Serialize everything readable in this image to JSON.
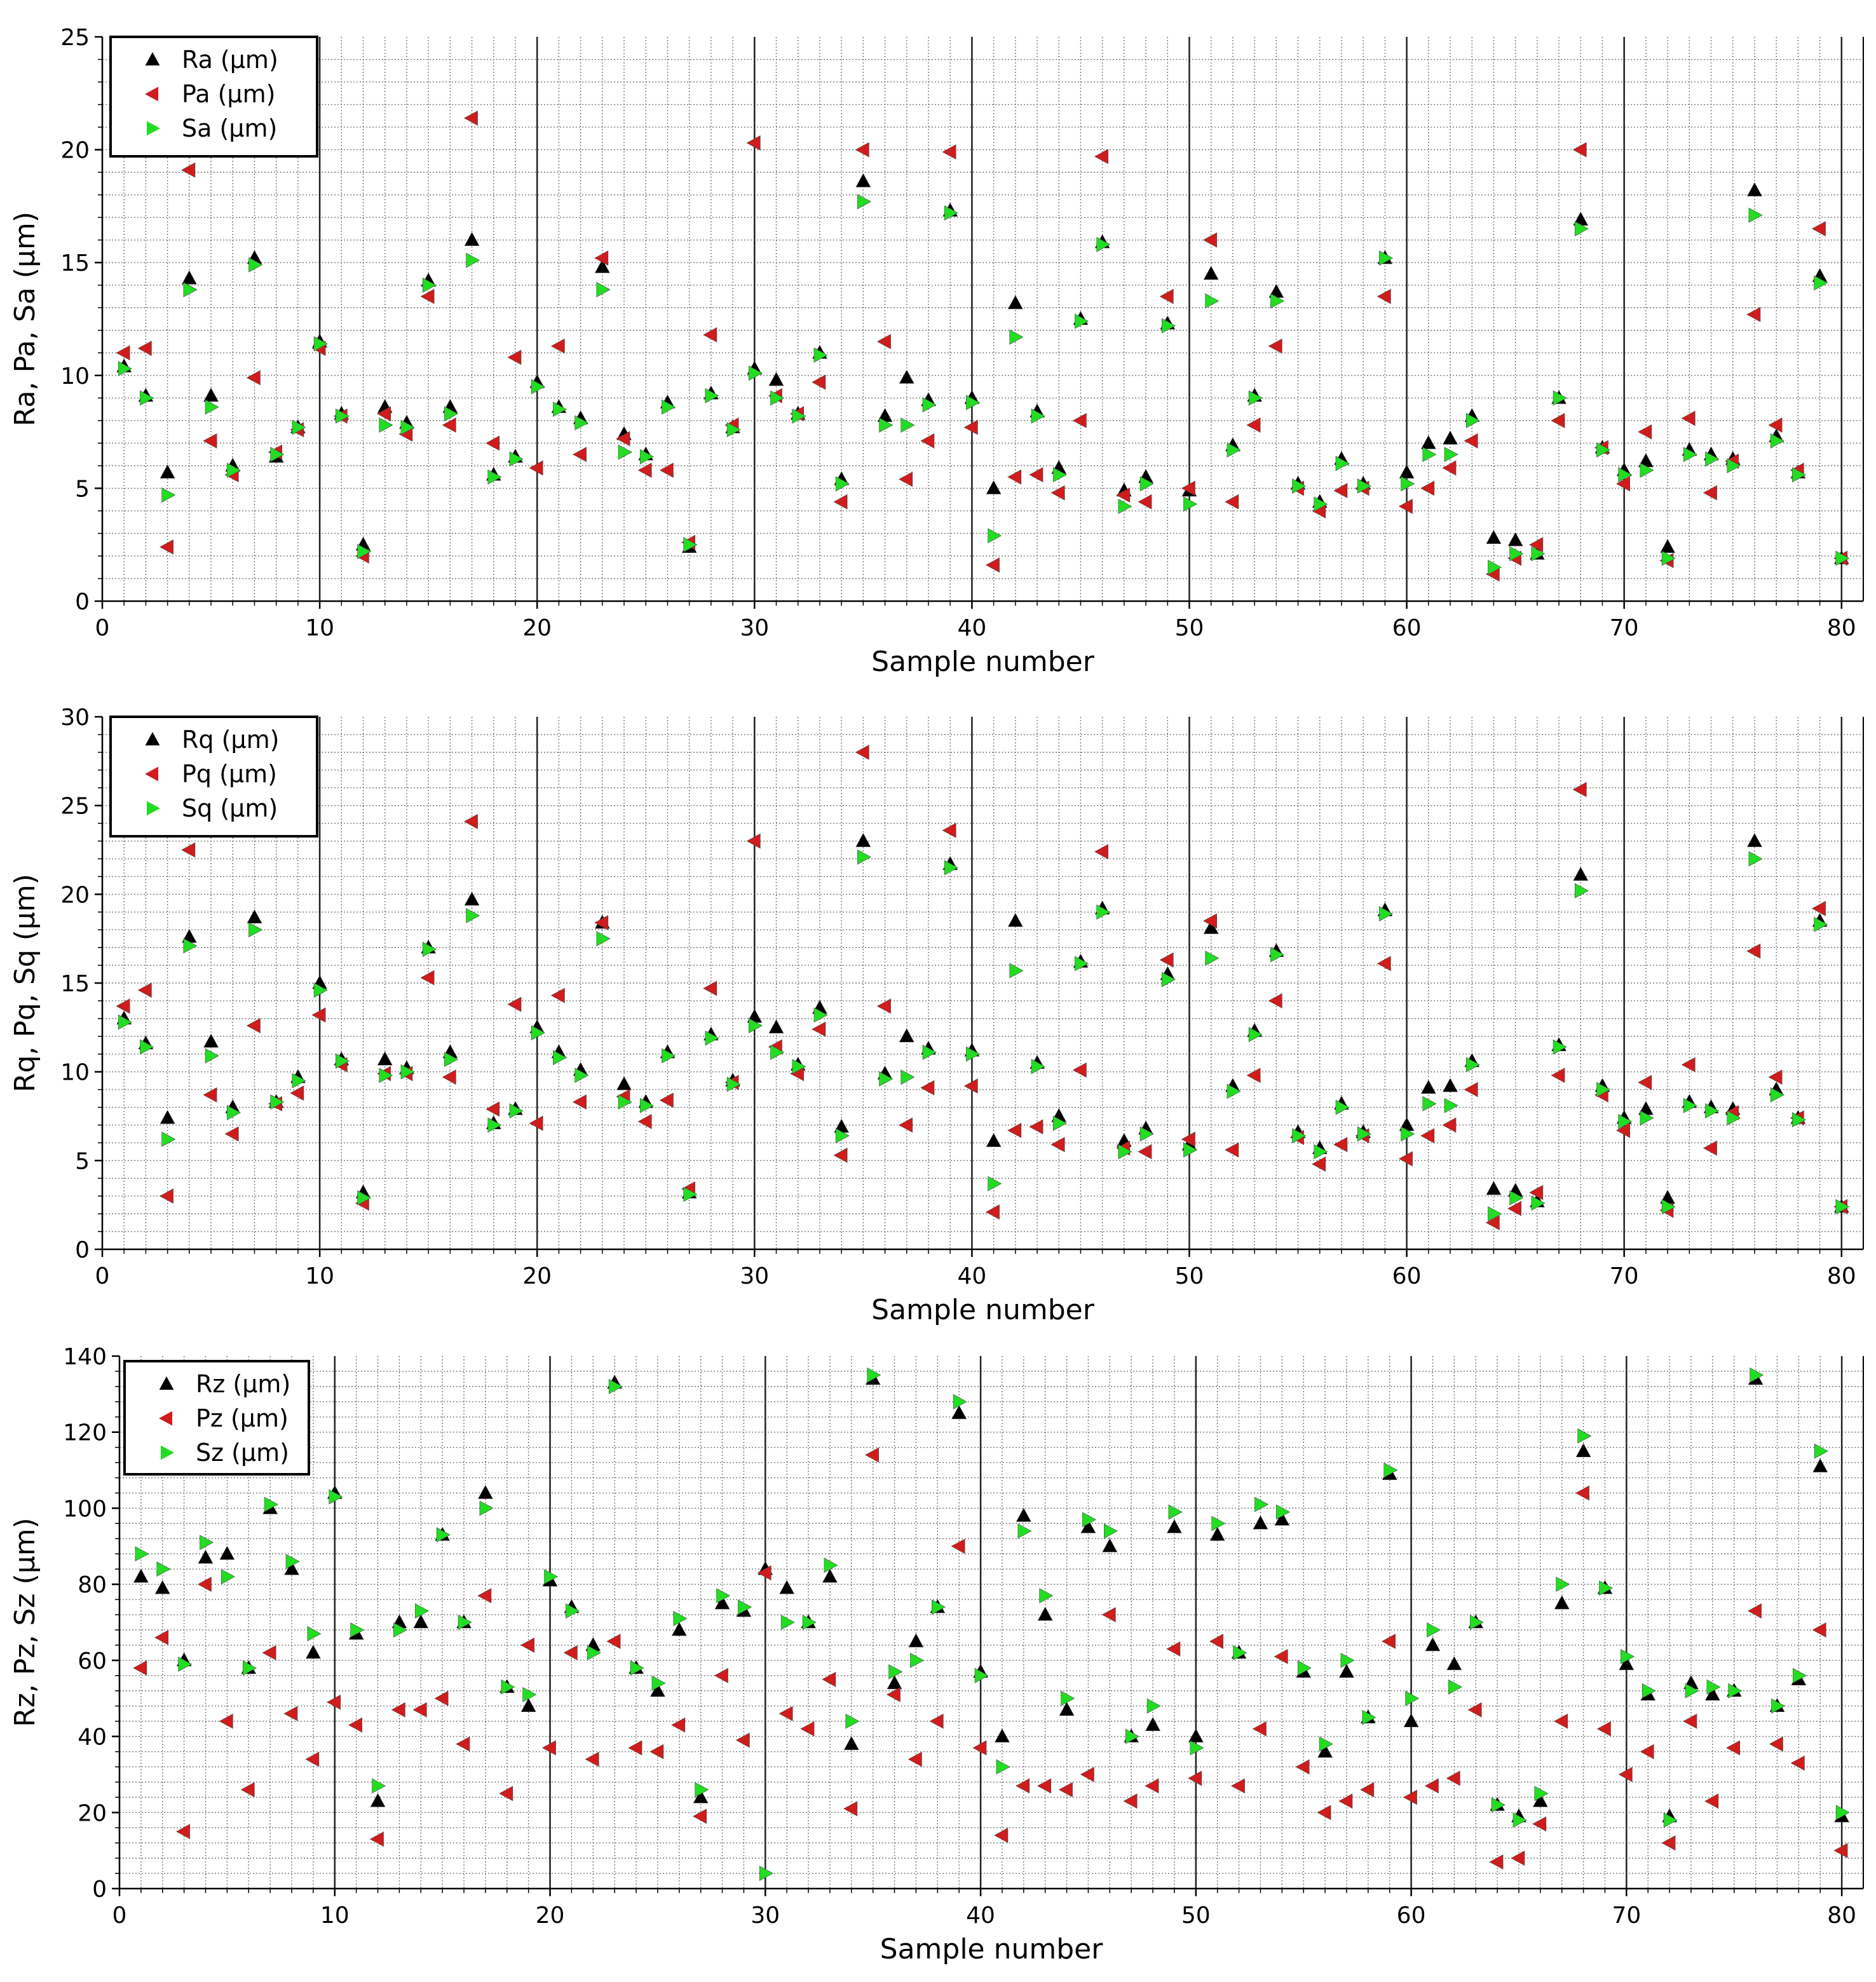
{
  "chart_data": [
    {
      "type": "scatter",
      "title": "",
      "xlabel": "Sample number",
      "ylabel": "Ra, Pa, Sa (μm)",
      "xlim": [
        0,
        81
      ],
      "ylim": [
        0,
        25
      ],
      "xticks": [
        "0",
        "10",
        "20",
        "30",
        "40",
        "50",
        "60",
        "70",
        "80"
      ],
      "yticks": [
        "0",
        "5",
        "10",
        "15",
        "20",
        "25"
      ],
      "grid": true,
      "legend_position": "top-left",
      "x": [
        1,
        2,
        3,
        4,
        5,
        6,
        7,
        8,
        9,
        10,
        11,
        12,
        13,
        14,
        15,
        16,
        17,
        18,
        19,
        20,
        21,
        22,
        23,
        24,
        25,
        26,
        27,
        28,
        29,
        30,
        31,
        32,
        33,
        34,
        35,
        36,
        37,
        38,
        39,
        40,
        41,
        42,
        43,
        44,
        45,
        46,
        47,
        48,
        49,
        50,
        51,
        52,
        53,
        54,
        55,
        56,
        57,
        58,
        59,
        60,
        61,
        62,
        63,
        64,
        65,
        66,
        67,
        68,
        69,
        70,
        71,
        72,
        73,
        74,
        75,
        76,
        77,
        78,
        79,
        80
      ],
      "series": [
        {
          "name": "Ra (μm)",
          "color": "#000000",
          "marker": "triangle-up",
          "values": [
            10.4,
            9.1,
            5.7,
            14.3,
            9.1,
            6.0,
            15.2,
            6.4,
            7.7,
            11.5,
            8.3,
            2.5,
            8.6,
            7.9,
            14.2,
            8.6,
            16.0,
            5.6,
            6.4,
            9.7,
            8.6,
            8.1,
            14.8,
            7.4,
            6.5,
            8.8,
            2.4,
            9.2,
            7.7,
            10.3,
            9.8,
            8.3,
            11.0,
            5.4,
            18.6,
            8.2,
            9.9,
            8.9,
            17.3,
            9.0,
            5.0,
            13.2,
            8.4,
            5.9,
            12.5,
            15.9,
            4.9,
            5.5,
            12.3,
            4.9,
            14.5,
            6.9,
            9.1,
            13.7,
            5.2,
            4.4,
            6.3,
            5.2,
            15.2,
            5.7,
            7.0,
            7.2,
            8.2,
            2.8,
            2.7,
            2.1,
            9.0,
            16.9,
            6.8,
            5.8,
            6.2,
            2.4,
            6.7,
            6.5,
            6.3,
            18.2,
            7.3,
            5.7,
            14.4,
            1.9
          ]
        },
        {
          "name": "Pa (μm)",
          "color": "#d01c1c",
          "marker": "triangle-left",
          "values": [
            11.0,
            11.2,
            2.4,
            19.1,
            7.1,
            5.6,
            9.9,
            6.6,
            7.6,
            11.2,
            8.2,
            2.0,
            8.3,
            7.4,
            13.5,
            7.8,
            21.4,
            7.0,
            10.8,
            5.9,
            11.3,
            6.5,
            15.2,
            7.2,
            5.8,
            5.8,
            2.6,
            11.8,
            7.8,
            20.3,
            9.1,
            8.3,
            9.7,
            4.4,
            20.0,
            11.5,
            5.4,
            7.1,
            19.9,
            7.7,
            1.6,
            5.5,
            5.6,
            4.8,
            8.0,
            19.7,
            4.7,
            4.4,
            13.5,
            5.0,
            16.0,
            4.4,
            7.8,
            11.3,
            5.0,
            4.0,
            4.9,
            5.0,
            13.5,
            4.2,
            5.0,
            5.9,
            7.1,
            1.2,
            1.9,
            2.5,
            8.0,
            20.0,
            6.8,
            5.2,
            7.5,
            1.8,
            8.1,
            4.8,
            6.2,
            12.7,
            7.8,
            5.8,
            16.5,
            1.9
          ]
        },
        {
          "name": "Sa (μm)",
          "color": "#22dd22",
          "marker": "triangle-right",
          "values": [
            10.3,
            9.0,
            4.7,
            13.8,
            8.6,
            5.8,
            14.9,
            6.5,
            7.7,
            11.4,
            8.2,
            2.2,
            7.8,
            7.7,
            14.0,
            8.3,
            15.1,
            5.5,
            6.3,
            9.5,
            8.5,
            7.9,
            13.8,
            6.6,
            6.4,
            8.6,
            2.5,
            9.1,
            7.6,
            10.1,
            9.0,
            8.2,
            10.9,
            5.2,
            17.7,
            7.8,
            7.8,
            8.7,
            17.2,
            8.8,
            2.9,
            11.7,
            8.2,
            5.6,
            12.4,
            15.8,
            4.2,
            5.2,
            12.2,
            4.3,
            13.3,
            6.7,
            9.0,
            13.3,
            5.1,
            4.3,
            6.1,
            5.1,
            15.2,
            5.2,
            6.5,
            6.5,
            8.0,
            1.5,
            2.1,
            2.1,
            9.0,
            16.5,
            6.7,
            5.6,
            5.8,
            1.9,
            6.5,
            6.3,
            6.0,
            17.1,
            7.1,
            5.6,
            14.1,
            1.9
          ]
        }
      ]
    },
    {
      "type": "scatter",
      "title": "",
      "xlabel": "Sample number",
      "ylabel": "Rq, Pq, Sq (μm)",
      "xlim": [
        0,
        81
      ],
      "ylim": [
        0,
        30
      ],
      "xticks": [
        "0",
        "10",
        "20",
        "30",
        "40",
        "50",
        "60",
        "70",
        "80"
      ],
      "yticks": [
        "0",
        "5",
        "10",
        "15",
        "20",
        "25",
        "30"
      ],
      "grid": true,
      "legend_position": "top-left",
      "x": [
        1,
        2,
        3,
        4,
        5,
        6,
        7,
        8,
        9,
        10,
        11,
        12,
        13,
        14,
        15,
        16,
        17,
        18,
        19,
        20,
        21,
        22,
        23,
        24,
        25,
        26,
        27,
        28,
        29,
        30,
        31,
        32,
        33,
        34,
        35,
        36,
        37,
        38,
        39,
        40,
        41,
        42,
        43,
        44,
        45,
        46,
        47,
        48,
        49,
        50,
        51,
        52,
        53,
        54,
        55,
        56,
        57,
        58,
        59,
        60,
        61,
        62,
        63,
        64,
        65,
        66,
        67,
        68,
        69,
        70,
        71,
        72,
        73,
        74,
        75,
        76,
        77,
        78,
        79,
        80
      ],
      "series": [
        {
          "name": "Rq (μm)",
          "color": "#000000",
          "marker": "triangle-up",
          "values": [
            13.0,
            11.6,
            7.4,
            17.6,
            11.7,
            8.0,
            18.7,
            8.3,
            9.7,
            15.0,
            10.7,
            3.2,
            10.7,
            10.2,
            17.0,
            11.1,
            19.7,
            7.1,
            7.9,
            12.5,
            11.1,
            10.1,
            18.4,
            9.3,
            8.3,
            11.1,
            3.2,
            12.1,
            9.5,
            13.1,
            12.5,
            10.4,
            13.6,
            6.9,
            23.0,
            9.9,
            12.0,
            11.3,
            21.7,
            11.2,
            6.1,
            18.5,
            10.5,
            7.5,
            16.2,
            19.2,
            6.1,
            6.8,
            15.5,
            5.9,
            18.1,
            9.2,
            12.3,
            16.8,
            6.6,
            5.7,
            8.2,
            6.6,
            19.1,
            7.0,
            9.1,
            9.2,
            10.6,
            3.4,
            3.3,
            2.7,
            11.5,
            21.1,
            9.2,
            7.4,
            7.9,
            2.9,
            8.3,
            8.0,
            7.9,
            23.0,
            9.0,
            7.4,
            18.5,
            2.4
          ]
        },
        {
          "name": "Pq (μm)",
          "color": "#d01c1c",
          "marker": "triangle-left",
          "values": [
            13.7,
            14.6,
            3.0,
            22.5,
            8.7,
            6.5,
            12.6,
            8.2,
            8.8,
            13.2,
            10.4,
            2.6,
            9.9,
            9.9,
            15.3,
            9.7,
            24.1,
            7.9,
            13.8,
            7.1,
            14.3,
            8.3,
            18.4,
            8.6,
            7.2,
            8.4,
            3.4,
            14.7,
            9.4,
            23.0,
            11.4,
            9.9,
            12.4,
            5.3,
            28.0,
            13.7,
            7.0,
            9.1,
            23.6,
            9.2,
            2.1,
            6.7,
            6.9,
            5.9,
            10.1,
            22.4,
            5.7,
            5.5,
            16.3,
            6.2,
            18.5,
            5.6,
            9.8,
            14.0,
            6.3,
            4.8,
            5.9,
            6.4,
            16.1,
            5.1,
            6.4,
            7.0,
            9.0,
            1.5,
            2.3,
            3.2,
            9.8,
            25.9,
            8.7,
            6.7,
            9.4,
            2.2,
            10.4,
            5.7,
            7.7,
            16.8,
            9.7,
            7.4,
            19.2,
            2.4
          ]
        },
        {
          "name": "Sq (μm)",
          "color": "#22dd22",
          "marker": "triangle-right",
          "values": [
            12.8,
            11.4,
            6.2,
            17.1,
            10.9,
            7.7,
            18.0,
            8.3,
            9.5,
            14.6,
            10.6,
            2.9,
            9.8,
            10.0,
            16.9,
            10.7,
            18.8,
            7.0,
            7.8,
            12.2,
            10.8,
            9.8,
            17.5,
            8.3,
            8.1,
            10.9,
            3.1,
            11.9,
            9.3,
            12.6,
            11.1,
            10.3,
            13.2,
            6.4,
            22.1,
            9.6,
            9.7,
            11.1,
            21.5,
            11.0,
            3.7,
            15.7,
            10.3,
            7.1,
            16.1,
            19.0,
            5.5,
            6.5,
            15.2,
            5.6,
            16.4,
            8.9,
            12.1,
            16.6,
            6.4,
            5.5,
            8.0,
            6.5,
            18.9,
            6.5,
            8.2,
            8.1,
            10.4,
            2.0,
            2.9,
            2.6,
            11.4,
            20.2,
            9.0,
            7.2,
            7.4,
            2.4,
            8.1,
            7.8,
            7.4,
            22.0,
            8.7,
            7.3,
            18.3,
            2.4
          ]
        }
      ]
    },
    {
      "type": "scatter",
      "title": "",
      "xlabel": "Sample number",
      "ylabel": "Rz, Pz, Sz (μm)",
      "xlim": [
        0,
        81
      ],
      "ylim": [
        0,
        140
      ],
      "xticks": [
        "0",
        "10",
        "20",
        "30",
        "40",
        "50",
        "60",
        "70",
        "80"
      ],
      "yticks": [
        "0",
        "20",
        "40",
        "60",
        "80",
        "100",
        "120",
        "140"
      ],
      "grid": true,
      "legend_position": "top-left",
      "x": [
        1,
        2,
        3,
        4,
        5,
        6,
        7,
        8,
        9,
        10,
        11,
        12,
        13,
        14,
        15,
        16,
        17,
        18,
        19,
        20,
        21,
        22,
        23,
        24,
        25,
        26,
        27,
        28,
        29,
        30,
        31,
        32,
        33,
        34,
        35,
        36,
        37,
        38,
        39,
        40,
        41,
        42,
        43,
        44,
        45,
        46,
        47,
        48,
        49,
        50,
        51,
        52,
        53,
        54,
        55,
        56,
        57,
        58,
        59,
        60,
        61,
        62,
        63,
        64,
        65,
        66,
        67,
        68,
        69,
        70,
        71,
        72,
        73,
        74,
        75,
        76,
        77,
        78,
        79,
        80
      ],
      "series": [
        {
          "name": "Rz (μm)",
          "color": "#000000",
          "marker": "triangle-up",
          "values": [
            82,
            79,
            60,
            87,
            88,
            58,
            100,
            84,
            62,
            104,
            67,
            23,
            70,
            70,
            93,
            70,
            104,
            53,
            48,
            81,
            74,
            64,
            133,
            58,
            52,
            68,
            24,
            75,
            73,
            84,
            79,
            70,
            82,
            38,
            134,
            54,
            65,
            74,
            125,
            57,
            40,
            98,
            72,
            47,
            95,
            90,
            40,
            43,
            95,
            40,
            93,
            62,
            96,
            97,
            57,
            36,
            57,
            45,
            109,
            44,
            64,
            59,
            70,
            22,
            19,
            23,
            75,
            115,
            79,
            59,
            51,
            19,
            54,
            51,
            52,
            134,
            48,
            55,
            111,
            19
          ]
        },
        {
          "name": "Pz (μm)",
          "color": "#d01c1c",
          "marker": "triangle-left",
          "values": [
            58,
            66,
            15,
            80,
            44,
            26,
            62,
            46,
            34,
            49,
            43,
            13,
            47,
            47,
            50,
            38,
            77,
            25,
            64,
            37,
            62,
            34,
            65,
            37,
            36,
            43,
            19,
            56,
            39,
            83,
            46,
            42,
            55,
            21,
            114,
            51,
            34,
            44,
            90,
            37,
            14,
            27,
            27,
            26,
            30,
            72,
            23,
            27,
            63,
            29,
            65,
            27,
            42,
            61,
            32,
            20,
            23,
            26,
            65,
            24,
            27,
            29,
            47,
            7,
            8,
            17,
            44,
            104,
            42,
            30,
            36,
            12,
            44,
            23,
            37,
            73,
            38,
            33,
            68,
            10
          ]
        },
        {
          "name": "Sz (μm)",
          "color": "#22dd22",
          "marker": "triangle-right",
          "values": [
            88,
            84,
            59,
            91,
            82,
            58,
            101,
            86,
            67,
            103,
            68,
            27,
            68,
            73,
            93,
            70,
            100,
            53,
            51,
            82,
            73,
            62,
            132,
            58,
            54,
            71,
            26,
            77,
            74,
            4,
            70,
            70,
            85,
            44,
            135,
            57,
            60,
            74,
            128,
            56,
            32,
            94,
            77,
            50,
            97,
            94,
            40,
            48,
            99,
            37,
            96,
            62,
            101,
            99,
            58,
            38,
            60,
            45,
            110,
            50,
            68,
            53,
            70,
            22,
            18,
            25,
            80,
            119,
            79,
            61,
            52,
            18,
            52,
            53,
            52,
            135,
            48,
            56,
            115,
            20
          ]
        }
      ]
    }
  ]
}
